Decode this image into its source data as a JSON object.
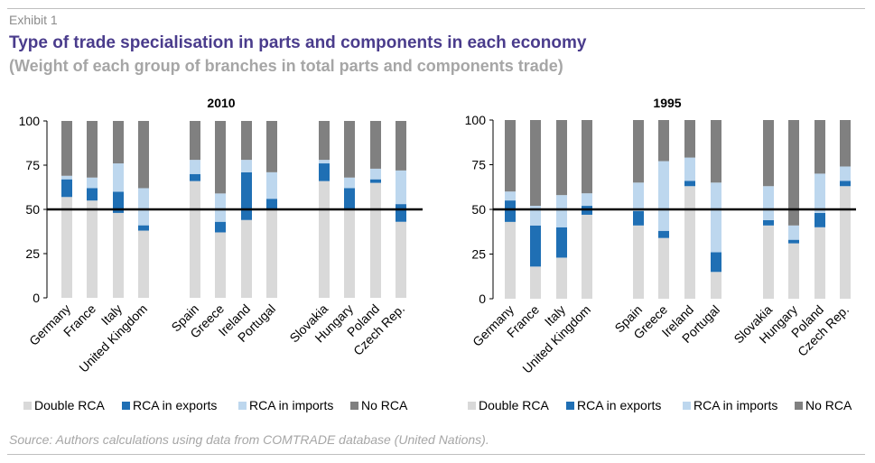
{
  "header": {
    "exhibit": "Exhibit 1",
    "title": "Type of trade specialisation in parts and components in each economy",
    "subtitle": "(Weight of each group of branches in total parts and components trade)"
  },
  "footer": {
    "source": "Source: Authors calculations using data from COMTRADE database (United Nations)."
  },
  "colors": {
    "Double RCA": "#d9d9d9",
    "RCA in exports": "#1f6fb4",
    "RCA in imports": "#bdd7ee",
    "No RCA": "#808080",
    "reference_line": "#000000"
  },
  "chart_data": [
    {
      "type": "bar",
      "stacked": true,
      "title": "2010",
      "ylim": [
        0,
        100
      ],
      "yticks": [
        0,
        25,
        50,
        75,
        100
      ],
      "reference_line": 50,
      "categories": [
        "Germany",
        "France",
        "Italy",
        "United Kingdom",
        "",
        "Spain",
        "Greece",
        "Ireland",
        "Portugal",
        "",
        "Slovakia",
        "Hungary",
        "Poland",
        "Czech Rep."
      ],
      "series": [
        {
          "name": "Double RCA",
          "values": [
            57,
            55,
            48,
            38,
            null,
            66,
            37,
            44,
            50,
            null,
            66,
            50,
            65,
            43
          ]
        },
        {
          "name": "RCA in exports",
          "values": [
            10,
            7,
            12,
            3,
            null,
            4,
            6,
            27,
            6,
            null,
            10,
            12,
            2,
            10
          ]
        },
        {
          "name": "RCA in imports",
          "values": [
            2,
            6,
            16,
            21,
            null,
            8,
            16,
            7,
            15,
            null,
            2,
            6,
            6,
            19
          ]
        },
        {
          "name": "No RCA",
          "values": [
            31,
            32,
            24,
            38,
            null,
            22,
            41,
            22,
            29,
            null,
            22,
            32,
            27,
            28
          ]
        }
      ],
      "legend": [
        "Double RCA",
        "RCA in exports",
        "RCA in imports",
        "No RCA"
      ],
      "legend_position": "bottom"
    },
    {
      "type": "bar",
      "stacked": true,
      "title": "1995",
      "ylim": [
        0,
        100
      ],
      "yticks": [
        0,
        25,
        50,
        75,
        100
      ],
      "reference_line": 50,
      "categories": [
        "Germany",
        "France",
        "Italy",
        "United Kingdom",
        "",
        "Spain",
        "Greece",
        "Ireland",
        "Portugal",
        "",
        "Slovakia",
        "Hungary",
        "Poland",
        "Czech Rep."
      ],
      "series": [
        {
          "name": "Double RCA",
          "values": [
            43,
            18,
            23,
            47,
            null,
            41,
            34,
            63,
            15,
            null,
            41,
            31,
            40,
            63
          ]
        },
        {
          "name": "RCA in exports",
          "values": [
            12,
            23,
            17,
            5,
            null,
            8,
            4,
            3,
            11,
            null,
            3,
            2,
            8,
            3
          ]
        },
        {
          "name": "RCA in imports",
          "values": [
            5,
            11,
            18,
            7,
            null,
            16,
            39,
            13,
            39,
            null,
            19,
            8,
            22,
            8
          ]
        },
        {
          "name": "No RCA",
          "values": [
            40,
            48,
            42,
            41,
            null,
            35,
            23,
            21,
            35,
            null,
            37,
            59,
            30,
            26
          ]
        }
      ],
      "legend": [
        "Double RCA",
        "RCA in exports",
        "RCA in imports",
        "No RCA"
      ],
      "legend_position": "bottom"
    }
  ]
}
